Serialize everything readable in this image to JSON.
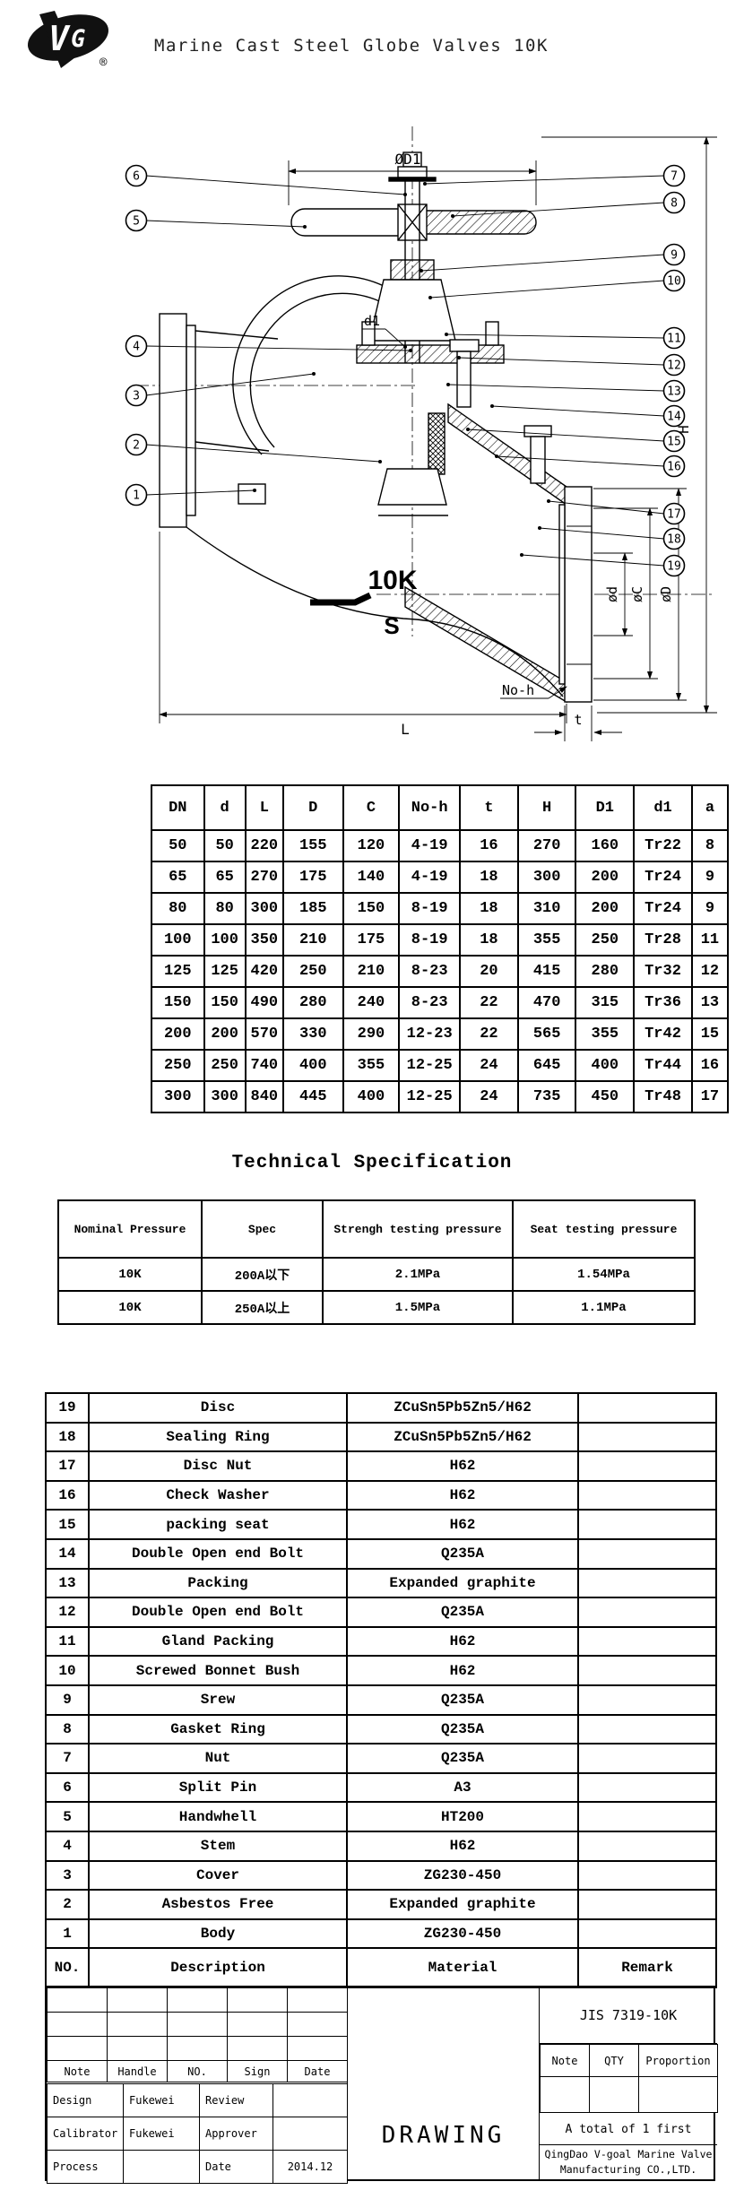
{
  "header": {
    "title": "Marine Cast Steel Globe Valves 10K",
    "registered_mark": "®"
  },
  "drawing": {
    "labels": {
      "od1": "ØD1",
      "d1": "d1",
      "h": "H",
      "l": "L",
      "t": "t",
      "no_h": "No-h",
      "od": "ød",
      "oc": "øC",
      "oD": "øD",
      "pressure": "10K",
      "s": "S"
    },
    "callouts_left": [
      "6",
      "5",
      "4",
      "3",
      "2",
      "1"
    ],
    "callouts_right": [
      "7",
      "8",
      "9",
      "10",
      "11",
      "12",
      "13",
      "14",
      "15",
      "16",
      "17",
      "18",
      "19"
    ]
  },
  "dimension_table": {
    "headers": [
      "DN",
      "d",
      "L",
      "D",
      "C",
      "No-h",
      "t",
      "H",
      "D1",
      "d1",
      "a"
    ],
    "rows": [
      [
        "50",
        "50",
        "220",
        "155",
        "120",
        "4-19",
        "16",
        "270",
        "160",
        "Tr22",
        "8"
      ],
      [
        "65",
        "65",
        "270",
        "175",
        "140",
        "4-19",
        "18",
        "300",
        "200",
        "Tr24",
        "9"
      ],
      [
        "80",
        "80",
        "300",
        "185",
        "150",
        "8-19",
        "18",
        "310",
        "200",
        "Tr24",
        "9"
      ],
      [
        "100",
        "100",
        "350",
        "210",
        "175",
        "8-19",
        "18",
        "355",
        "250",
        "Tr28",
        "11"
      ],
      [
        "125",
        "125",
        "420",
        "250",
        "210",
        "8-23",
        "20",
        "415",
        "280",
        "Tr32",
        "12"
      ],
      [
        "150",
        "150",
        "490",
        "280",
        "240",
        "8-23",
        "22",
        "470",
        "315",
        "Tr36",
        "13"
      ],
      [
        "200",
        "200",
        "570",
        "330",
        "290",
        "12-23",
        "22",
        "565",
        "355",
        "Tr42",
        "15"
      ],
      [
        "250",
        "250",
        "740",
        "400",
        "355",
        "12-25",
        "24",
        "645",
        "400",
        "Tr44",
        "16"
      ],
      [
        "300",
        "300",
        "840",
        "445",
        "400",
        "12-25",
        "24",
        "735",
        "450",
        "Tr48",
        "17"
      ]
    ]
  },
  "tech_spec": {
    "title": "Technical Specification",
    "headers": [
      "Nominal Pressure",
      "Spec",
      "Strengh testing pressure",
      "Seat testing pressure"
    ],
    "rows": [
      [
        "10K",
        "200A以下",
        "2.1MPa",
        "1.54MPa"
      ],
      [
        "10K",
        "250A以上",
        "1.5MPa",
        "1.1MPa"
      ]
    ]
  },
  "parts_list": {
    "headers": [
      "NO.",
      "Description",
      "Material",
      "Remark"
    ],
    "rows": [
      [
        "19",
        "Disc",
        "ZCuSn5Pb5Zn5/H62",
        ""
      ],
      [
        "18",
        "Sealing Ring",
        "ZCuSn5Pb5Zn5/H62",
        ""
      ],
      [
        "17",
        "Disc Nut",
        "H62",
        ""
      ],
      [
        "16",
        "Check Washer",
        "H62",
        ""
      ],
      [
        "15",
        "packing seat",
        "H62",
        ""
      ],
      [
        "14",
        "Double Open end Bolt",
        "Q235A",
        ""
      ],
      [
        "13",
        "Packing",
        "Expanded graphite",
        ""
      ],
      [
        "12",
        "Double Open end Bolt",
        "Q235A",
        ""
      ],
      [
        "11",
        "Gland Packing",
        "H62",
        ""
      ],
      [
        "10",
        "Screwed Bonnet Bush",
        "H62",
        ""
      ],
      [
        "9",
        "Srew",
        "Q235A",
        ""
      ],
      [
        "8",
        "Gasket Ring",
        "Q235A",
        ""
      ],
      [
        "7",
        "Nut",
        "Q235A",
        ""
      ],
      [
        "6",
        "Split Pin",
        "A3",
        ""
      ],
      [
        "5",
        "Handwhell",
        "HT200",
        ""
      ],
      [
        "4",
        "Stem",
        "H62",
        ""
      ],
      [
        "3",
        "Cover",
        "ZG230-450",
        ""
      ],
      [
        "2",
        "Asbestos Free",
        "Expanded graphite",
        ""
      ],
      [
        "1",
        "Body",
        "ZG230-450",
        ""
      ]
    ]
  },
  "title_block": {
    "revision_header": [
      "Note",
      "Handle",
      "NO.",
      "Sign",
      "Date"
    ],
    "signature_rows": [
      [
        "Design",
        "Fukewei",
        "Review",
        ""
      ],
      [
        "Calibrator",
        "Fukewei",
        "Approver",
        ""
      ],
      [
        "Process",
        "",
        "Date",
        "2014.12"
      ]
    ],
    "drawing_label": "DRAWING",
    "standard": "JIS 7319-10K",
    "qty_header": [
      "Note",
      "QTY",
      "Proportion"
    ],
    "total_note": "A total of 1 first",
    "company": [
      "QingDao V-goal Marine Valve",
      "Manufacturing CO.,LTD."
    ]
  }
}
